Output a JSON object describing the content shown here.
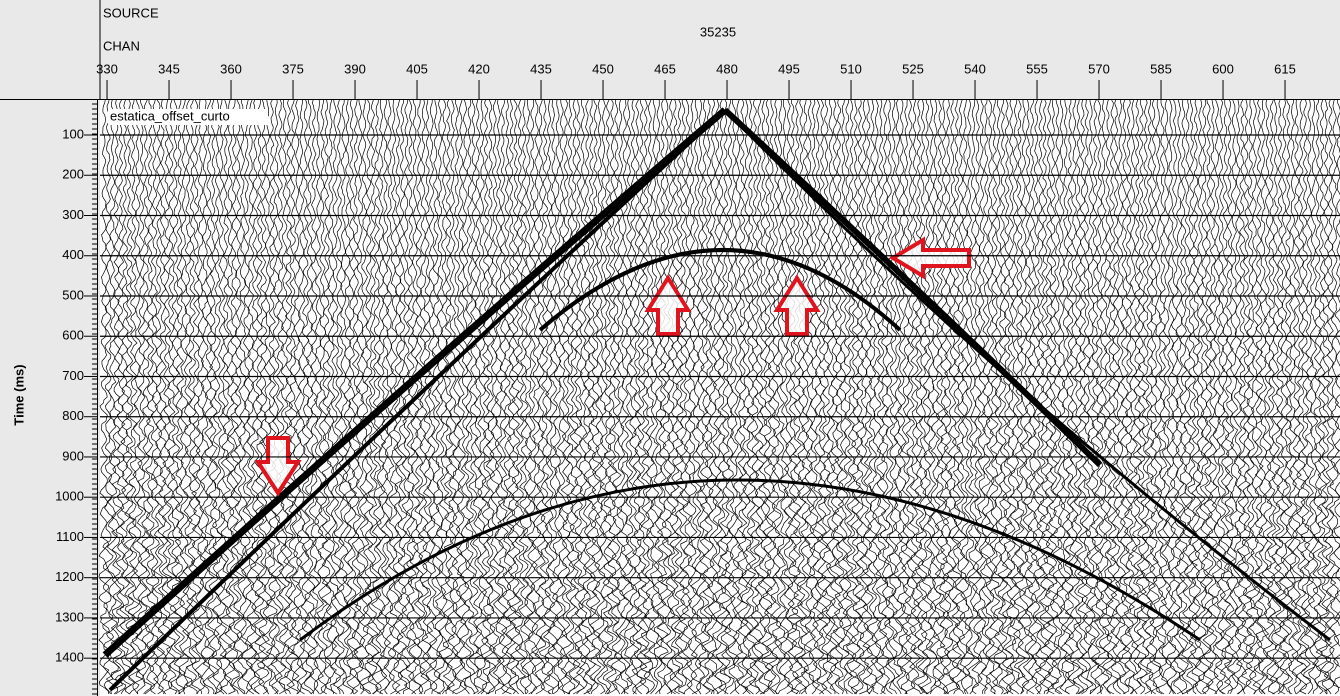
{
  "chart_data": {
    "type": "seismic",
    "header_labels": [
      "SOURCE",
      "CHAN"
    ],
    "source_id": "35235",
    "ylabel": "Time (ms)",
    "annotation": "estatica_offset_curto",
    "xlim": [
      328.3,
      628.3
    ],
    "xticks": [
      330,
      345,
      360,
      375,
      390,
      405,
      420,
      435,
      450,
      465,
      480,
      495,
      510,
      525,
      540,
      555,
      570,
      585,
      600,
      615
    ],
    "ylim": [
      1494,
      13
    ],
    "yticks": [
      100,
      200,
      300,
      400,
      500,
      600,
      700,
      800,
      900,
      1000,
      1100,
      1200,
      1300,
      1400
    ],
    "grid": true
  }
}
